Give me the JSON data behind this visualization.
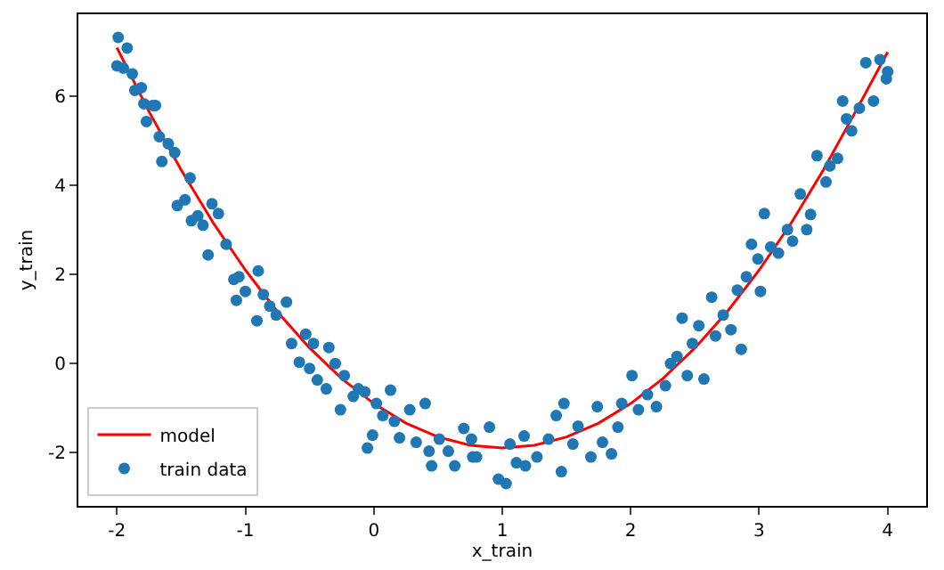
{
  "chart_data": {
    "type": "scatter",
    "xlabel": "x_train",
    "ylabel": "y_train",
    "xlim": [
      -2.3,
      4.3
    ],
    "ylim": [
      -3.2,
      7.85
    ],
    "xticks": [
      -2,
      -1,
      0,
      1,
      2,
      3,
      4
    ],
    "yticks": [
      -2,
      0,
      2,
      4,
      6
    ],
    "grid": false,
    "legend": "bottom left",
    "series": [
      {
        "name": "model",
        "type": "line",
        "color": "#ff0000",
        "line_style": "solid",
        "marker": "none",
        "x": [
          -2,
          -1.75,
          -1.5,
          -1.25,
          -1,
          -0.75,
          -0.5,
          -0.25,
          0,
          0.25,
          0.5,
          0.75,
          1,
          1.25,
          1.5,
          1.75,
          2,
          2.25,
          2.5,
          2.75,
          3,
          3.25,
          3.5,
          3.75,
          4
        ],
        "values": [
          7.1,
          5.66,
          4.35,
          3.16,
          2.1,
          1.16,
          0.35,
          -0.34,
          -0.9,
          -1.34,
          -1.65,
          -1.84,
          -1.9,
          -1.84,
          -1.65,
          -1.34,
          -0.9,
          -0.34,
          0.35,
          1.16,
          2.1,
          3.16,
          4.35,
          5.66,
          7.0
        ]
      },
      {
        "name": "train data",
        "color": "#1f77b4",
        "marker": "circle",
        "x": [
          -1.99,
          -1.92,
          -2.0,
          -1.95,
          -1.88,
          -1.86,
          -1.81,
          -1.79,
          -1.72,
          -1.7,
          -1.77,
          -1.67,
          -1.6,
          -1.55,
          -1.65,
          -1.43,
          -1.53,
          -1.47,
          -1.42,
          -1.37,
          -1.33,
          -1.26,
          -1.21,
          -1.29,
          -1.15,
          -1.09,
          -1.05,
          -1.07,
          -1.0,
          -0.9,
          -0.86,
          -0.91,
          -0.81,
          -0.76,
          -0.68,
          -0.64,
          -0.58,
          -0.53,
          -0.47,
          -0.5,
          -0.44,
          -0.37,
          -0.35,
          -0.3,
          -0.23,
          -0.26,
          -0.16,
          -0.12,
          -0.07,
          -0.05,
          -0.01,
          0.02,
          0.07,
          0.13,
          0.16,
          0.2,
          0.28,
          0.33,
          0.4,
          0.43,
          0.45,
          0.51,
          0.58,
          0.63,
          0.7,
          0.77,
          0.76,
          0.8,
          0.9,
          0.97,
          1.03,
          1.06,
          1.11,
          1.18,
          1.17,
          1.27,
          1.36,
          1.42,
          1.46,
          1.48,
          1.55,
          1.59,
          1.69,
          1.74,
          1.78,
          1.85,
          1.9,
          1.93,
          2.01,
          2.06,
          2.13,
          2.2,
          2.27,
          2.31,
          2.36,
          2.44,
          2.4,
          2.48,
          2.53,
          2.57,
          2.63,
          2.66,
          2.72,
          2.78,
          2.83,
          2.86,
          2.9,
          2.94,
          2.99,
          3.01,
          3.04,
          3.09,
          3.15,
          3.22,
          3.26,
          3.32,
          3.37,
          3.4,
          3.45,
          3.52,
          3.55,
          3.61,
          3.65,
          3.68,
          3.72,
          3.78,
          3.83,
          3.89,
          3.94,
          3.99,
          4.0
        ],
        "values": [
          7.33,
          7.09,
          6.69,
          6.64,
          6.51,
          6.14,
          6.2,
          5.84,
          5.8,
          5.8,
          5.44,
          5.1,
          4.94,
          4.74,
          4.54,
          4.17,
          3.55,
          3.68,
          3.21,
          3.32,
          3.11,
          3.59,
          3.37,
          2.44,
          2.68,
          1.89,
          1.95,
          1.42,
          1.62,
          2.08,
          1.55,
          0.96,
          1.29,
          1.09,
          1.38,
          0.45,
          0.03,
          0.66,
          0.45,
          -0.11,
          -0.37,
          -0.57,
          0.36,
          0.0,
          -0.27,
          -1.04,
          -0.74,
          -0.57,
          -0.64,
          -1.9,
          -1.61,
          -0.9,
          -1.17,
          -0.6,
          -1.3,
          -1.67,
          -1.04,
          -1.77,
          -0.9,
          -1.97,
          -2.3,
          -1.7,
          -1.97,
          -2.3,
          -1.46,
          -2.1,
          -1.7,
          -2.1,
          -1.43,
          -2.6,
          -2.7,
          -1.81,
          -2.23,
          -2.3,
          -1.63,
          -2.1,
          -1.7,
          -1.17,
          -2.43,
          -0.9,
          -1.81,
          -1.41,
          -2.1,
          -0.97,
          -1.77,
          -2.03,
          -1.43,
          -0.9,
          -0.27,
          -1.04,
          -0.7,
          -0.97,
          -0.5,
          0.0,
          0.16,
          -0.27,
          1.02,
          0.45,
          0.85,
          -0.35,
          1.49,
          0.62,
          1.09,
          0.76,
          1.65,
          0.32,
          1.95,
          2.68,
          2.35,
          1.62,
          3.37,
          2.62,
          2.48,
          3.01,
          2.75,
          3.81,
          3.01,
          3.35,
          4.67,
          4.08,
          4.44,
          4.61,
          5.9,
          5.5,
          5.23,
          5.74,
          6.76,
          5.9,
          6.83,
          6.4,
          6.56
        ]
      }
    ]
  }
}
